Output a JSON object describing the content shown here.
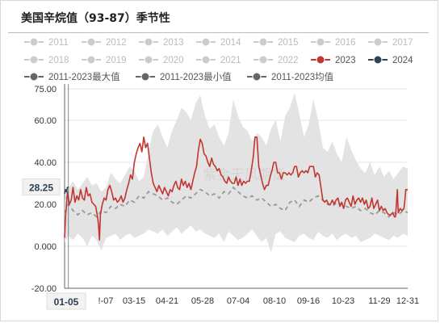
{
  "title": "美国辛烷值（93-87）季节性",
  "watermark": "紫金天风期货",
  "colors": {
    "series_2023": "#c23531",
    "series_2024": "#2f4554",
    "band": "#e2e2e2",
    "avg": "#9a9a9a",
    "legend_inactive": "#cccccc",
    "legend_stat": "#666666",
    "cursor_label_bg": "#f2f2f2"
  },
  "cursor": {
    "y_label": "28.25",
    "x_label": "01-05"
  },
  "chart_data": {
    "type": "line",
    "title": "美国辛烷值（93-87）季节性",
    "xlabel": "",
    "ylabel": "",
    "ylim": [
      -20,
      75
    ],
    "y_ticks": [
      -20,
      0,
      20,
      40,
      60,
      75
    ],
    "y_tick_labels": [
      "-20.00",
      "0.000",
      "20.00",
      "40.00",
      "60.00",
      "75.00"
    ],
    "x_ticks": [
      "01-05",
      "!-07",
      "03-15",
      "04-21",
      "05-28",
      "07-04",
      "08-10",
      "09-16",
      "10-23",
      "11-29",
      "12-31"
    ],
    "grid": true,
    "legend_placement": "top",
    "legend": [
      {
        "name": "2011",
        "active": false,
        "style": "line-dot"
      },
      {
        "name": "2012",
        "active": false,
        "style": "line-dot"
      },
      {
        "name": "2013",
        "active": false,
        "style": "line-dot"
      },
      {
        "name": "2014",
        "active": false,
        "style": "line-dot"
      },
      {
        "name": "2015",
        "active": false,
        "style": "line-dot"
      },
      {
        "name": "2016",
        "active": false,
        "style": "line-dot"
      },
      {
        "name": "2017",
        "active": false,
        "style": "line-dot"
      },
      {
        "name": "2018",
        "active": false,
        "style": "line-dot"
      },
      {
        "name": "2019",
        "active": false,
        "style": "line-dot"
      },
      {
        "name": "2020",
        "active": false,
        "style": "line-dot"
      },
      {
        "name": "2021",
        "active": false,
        "style": "line-dot"
      },
      {
        "name": "2022",
        "active": false,
        "style": "line-dot"
      },
      {
        "name": "2023",
        "active": true,
        "style": "line-dot",
        "color": "#c23531"
      },
      {
        "name": "2024",
        "active": true,
        "style": "line-dot",
        "color": "#2f4554"
      },
      {
        "name": "2011-2023最大值",
        "active": true,
        "style": "stat",
        "color": "#666666"
      },
      {
        "name": "2011-2023最小值",
        "active": true,
        "style": "stat",
        "color": "#666666"
      },
      {
        "name": "2011-2023均值",
        "active": true,
        "style": "stat",
        "color": "#666666"
      }
    ],
    "band_days": [
      1,
      5,
      10,
      15,
      20,
      25,
      30,
      35,
      40,
      45,
      50,
      55,
      60,
      65,
      70,
      75,
      80,
      85,
      90,
      95,
      100,
      105,
      110,
      115,
      120,
      125,
      130,
      135,
      140,
      145,
      150,
      155,
      160,
      165,
      170,
      175,
      180,
      185,
      190,
      195,
      200,
      205,
      210,
      215,
      220,
      225,
      230,
      235,
      240,
      245,
      250,
      255,
      260,
      265,
      270,
      275,
      280,
      285,
      290,
      295,
      300,
      305,
      310,
      315,
      320,
      325,
      330,
      335,
      340,
      345,
      350,
      355,
      360,
      365
    ],
    "band_max": [
      22,
      28,
      31,
      27,
      30,
      33,
      29,
      30,
      26,
      28,
      35,
      32,
      30,
      34,
      38,
      36,
      31,
      33,
      45,
      55,
      58,
      52,
      47,
      55,
      60,
      66,
      64,
      60,
      68,
      72,
      62,
      56,
      58,
      52,
      48,
      54,
      70,
      62,
      57,
      55,
      50,
      54,
      52,
      48,
      56,
      60,
      50,
      62,
      66,
      73,
      63,
      52,
      58,
      70,
      60,
      47,
      45,
      50,
      44,
      40,
      52,
      46,
      41,
      37,
      35,
      40,
      34,
      38,
      33,
      36,
      32,
      35,
      38,
      37
    ],
    "band_min": [
      2,
      5,
      3,
      6,
      4,
      0,
      5,
      3,
      -2,
      4,
      5,
      6,
      3,
      5,
      6,
      4,
      5,
      6,
      8,
      7,
      6,
      8,
      5,
      7,
      9,
      6,
      8,
      10,
      7,
      8,
      6,
      5,
      4,
      6,
      2,
      7,
      5,
      3,
      4,
      6,
      8,
      5,
      2,
      4,
      -3,
      6,
      7,
      4,
      3,
      2,
      5,
      6,
      4,
      3,
      7,
      5,
      4,
      6,
      3,
      5,
      6,
      4,
      5,
      2,
      3,
      4,
      6,
      5,
      4,
      3,
      5,
      4,
      6,
      5
    ],
    "average": [
      [
        1,
        16
      ],
      [
        5,
        20
      ],
      [
        10,
        17
      ],
      [
        15,
        15
      ],
      [
        20,
        17
      ],
      [
        25,
        15
      ],
      [
        30,
        16
      ],
      [
        35,
        14
      ],
      [
        40,
        17
      ],
      [
        45,
        16
      ],
      [
        50,
        19
      ],
      [
        55,
        18
      ],
      [
        60,
        20
      ],
      [
        65,
        19
      ],
      [
        70,
        22
      ],
      [
        75,
        21
      ],
      [
        80,
        24
      ],
      [
        85,
        23
      ],
      [
        90,
        26
      ],
      [
        95,
        25
      ],
      [
        100,
        24
      ],
      [
        105,
        22
      ],
      [
        110,
        23
      ],
      [
        115,
        21
      ],
      [
        120,
        20
      ],
      [
        125,
        22
      ],
      [
        130,
        24
      ],
      [
        135,
        23
      ],
      [
        140,
        25
      ],
      [
        145,
        27
      ],
      [
        150,
        26
      ],
      [
        155,
        24
      ],
      [
        160,
        25
      ],
      [
        165,
        23
      ],
      [
        170,
        26
      ],
      [
        175,
        25
      ],
      [
        180,
        28
      ],
      [
        185,
        26
      ],
      [
        190,
        24
      ],
      [
        195,
        23
      ],
      [
        200,
        24
      ],
      [
        205,
        22
      ],
      [
        210,
        23
      ],
      [
        215,
        21
      ],
      [
        220,
        19
      ],
      [
        225,
        20
      ],
      [
        230,
        18
      ],
      [
        235,
        17
      ],
      [
        240,
        21
      ],
      [
        245,
        22
      ],
      [
        250,
        19
      ],
      [
        255,
        22
      ],
      [
        260,
        21
      ],
      [
        265,
        23
      ],
      [
        270,
        24
      ],
      [
        275,
        22
      ],
      [
        280,
        20
      ],
      [
        285,
        19
      ],
      [
        290,
        21
      ],
      [
        295,
        20
      ],
      [
        300,
        19
      ],
      [
        305,
        18
      ],
      [
        310,
        19
      ],
      [
        315,
        17
      ],
      [
        320,
        18
      ],
      [
        325,
        16
      ],
      [
        330,
        15
      ],
      [
        335,
        17
      ],
      [
        340,
        16
      ],
      [
        345,
        14
      ],
      [
        350,
        16
      ],
      [
        355,
        15
      ],
      [
        360,
        17
      ],
      [
        365,
        16
      ]
    ],
    "series": [
      {
        "name": "2023",
        "points": [
          [
            1,
            4
          ],
          [
            2,
            14
          ],
          [
            4,
            26
          ],
          [
            6,
            20
          ],
          [
            8,
            22
          ],
          [
            10,
            28
          ],
          [
            12,
            21
          ],
          [
            14,
            24
          ],
          [
            16,
            22
          ],
          [
            18,
            27
          ],
          [
            20,
            23
          ],
          [
            22,
            22
          ],
          [
            24,
            28
          ],
          [
            26,
            24
          ],
          [
            28,
            25
          ],
          [
            30,
            21
          ],
          [
            32,
            20
          ],
          [
            34,
            19
          ],
          [
            36,
            14
          ],
          [
            37,
            10
          ],
          [
            38,
            3
          ],
          [
            39,
            15
          ],
          [
            41,
            20
          ],
          [
            43,
            23
          ],
          [
            45,
            22
          ],
          [
            47,
            27
          ],
          [
            49,
            29
          ],
          [
            51,
            26
          ],
          [
            53,
            22
          ],
          [
            55,
            23
          ],
          [
            57,
            21
          ],
          [
            59,
            22
          ],
          [
            61,
            24
          ],
          [
            63,
            21
          ],
          [
            65,
            23
          ],
          [
            67,
            27
          ],
          [
            69,
            30
          ],
          [
            71,
            34
          ],
          [
            73,
            32
          ],
          [
            75,
            40
          ],
          [
            77,
            44
          ],
          [
            79,
            47
          ],
          [
            81,
            49
          ],
          [
            83,
            45
          ],
          [
            85,
            52
          ],
          [
            87,
            47
          ],
          [
            89,
            49
          ],
          [
            91,
            42
          ],
          [
            93,
            35
          ],
          [
            95,
            30
          ],
          [
            97,
            28
          ],
          [
            99,
            26
          ],
          [
            101,
            29
          ],
          [
            103,
            27
          ],
          [
            105,
            25
          ],
          [
            107,
            28
          ],
          [
            109,
            26
          ],
          [
            111,
            24
          ],
          [
            113,
            27
          ],
          [
            115,
            26
          ],
          [
            117,
            29
          ],
          [
            119,
            31
          ],
          [
            121,
            28
          ],
          [
            123,
            27
          ],
          [
            125,
            32
          ],
          [
            127,
            29
          ],
          [
            129,
            31
          ],
          [
            131,
            28
          ],
          [
            133,
            30
          ],
          [
            135,
            27
          ],
          [
            137,
            31
          ],
          [
            139,
            35
          ],
          [
            141,
            38
          ],
          [
            143,
            46
          ],
          [
            145,
            51
          ],
          [
            147,
            49
          ],
          [
            149,
            44
          ],
          [
            151,
            43
          ],
          [
            153,
            40
          ],
          [
            155,
            38
          ],
          [
            157,
            42
          ],
          [
            159,
            39
          ],
          [
            161,
            38
          ],
          [
            163,
            36
          ],
          [
            165,
            37
          ],
          [
            167,
            34
          ],
          [
            169,
            33
          ],
          [
            171,
            31
          ],
          [
            173,
            30
          ],
          [
            175,
            33
          ],
          [
            177,
            31
          ],
          [
            179,
            30
          ],
          [
            181,
            30
          ],
          [
            183,
            33
          ],
          [
            185,
            29
          ],
          [
            187,
            32
          ],
          [
            189,
            29
          ],
          [
            191,
            31
          ],
          [
            193,
            30
          ],
          [
            195,
            31
          ],
          [
            197,
            31
          ],
          [
            199,
            36
          ],
          [
            201,
            42
          ],
          [
            203,
            52
          ],
          [
            205,
            52
          ],
          [
            207,
            38
          ],
          [
            209,
            34
          ],
          [
            211,
            30
          ],
          [
            213,
            27
          ],
          [
            215,
            29
          ],
          [
            217,
            29
          ],
          [
            219,
            33
          ],
          [
            221,
            36
          ],
          [
            223,
            40
          ],
          [
            225,
            40
          ],
          [
            227,
            35
          ],
          [
            229,
            35
          ],
          [
            231,
            32
          ],
          [
            233,
            35
          ],
          [
            235,
            35
          ],
          [
            237,
            34
          ],
          [
            239,
            35
          ],
          [
            241,
            34
          ],
          [
            243,
            35
          ],
          [
            245,
            38
          ],
          [
            247,
            38
          ],
          [
            249,
            33
          ],
          [
            251,
            35
          ],
          [
            253,
            36
          ],
          [
            255,
            35
          ],
          [
            257,
            36
          ],
          [
            259,
            35
          ],
          [
            261,
            38
          ],
          [
            263,
            38
          ],
          [
            265,
            38
          ],
          [
            267,
            33
          ],
          [
            269,
            35
          ],
          [
            271,
            34
          ],
          [
            273,
            28
          ],
          [
            275,
            22
          ],
          [
            277,
            21
          ],
          [
            279,
            22
          ],
          [
            281,
            20
          ],
          [
            283,
            20
          ],
          [
            285,
            22
          ],
          [
            287,
            20
          ],
          [
            289,
            22
          ],
          [
            291,
            23
          ],
          [
            293,
            19
          ],
          [
            295,
            21
          ],
          [
            297,
            18
          ],
          [
            299,
            22
          ],
          [
            301,
            23
          ],
          [
            303,
            21
          ],
          [
            305,
            19
          ],
          [
            307,
            24
          ],
          [
            309,
            20
          ],
          [
            311,
            22
          ],
          [
            313,
            23
          ],
          [
            315,
            21
          ],
          [
            317,
            23
          ],
          [
            319,
            20
          ],
          [
            321,
            22
          ],
          [
            323,
            18
          ],
          [
            325,
            19
          ],
          [
            327,
            23
          ],
          [
            329,
            18
          ],
          [
            331,
            20
          ],
          [
            333,
            22
          ],
          [
            335,
            17
          ],
          [
            337,
            19
          ],
          [
            339,
            17
          ],
          [
            341,
            18
          ],
          [
            343,
            16
          ],
          [
            345,
            15
          ],
          [
            347,
            15
          ],
          [
            349,
            16
          ],
          [
            351,
            14
          ],
          [
            352,
            14
          ],
          [
            353,
            20
          ],
          [
            354,
            27
          ],
          [
            355,
            16
          ],
          [
            357,
            18
          ],
          [
            359,
            17
          ],
          [
            361,
            18
          ],
          [
            362,
            22
          ],
          [
            363,
            27
          ],
          [
            365,
            27
          ]
        ]
      },
      {
        "name": "2024",
        "points": [
          [
            1,
            25
          ],
          [
            2,
            27
          ],
          [
            3,
            26
          ],
          [
            4,
            28
          ],
          [
            5,
            28.25
          ]
        ]
      }
    ]
  }
}
